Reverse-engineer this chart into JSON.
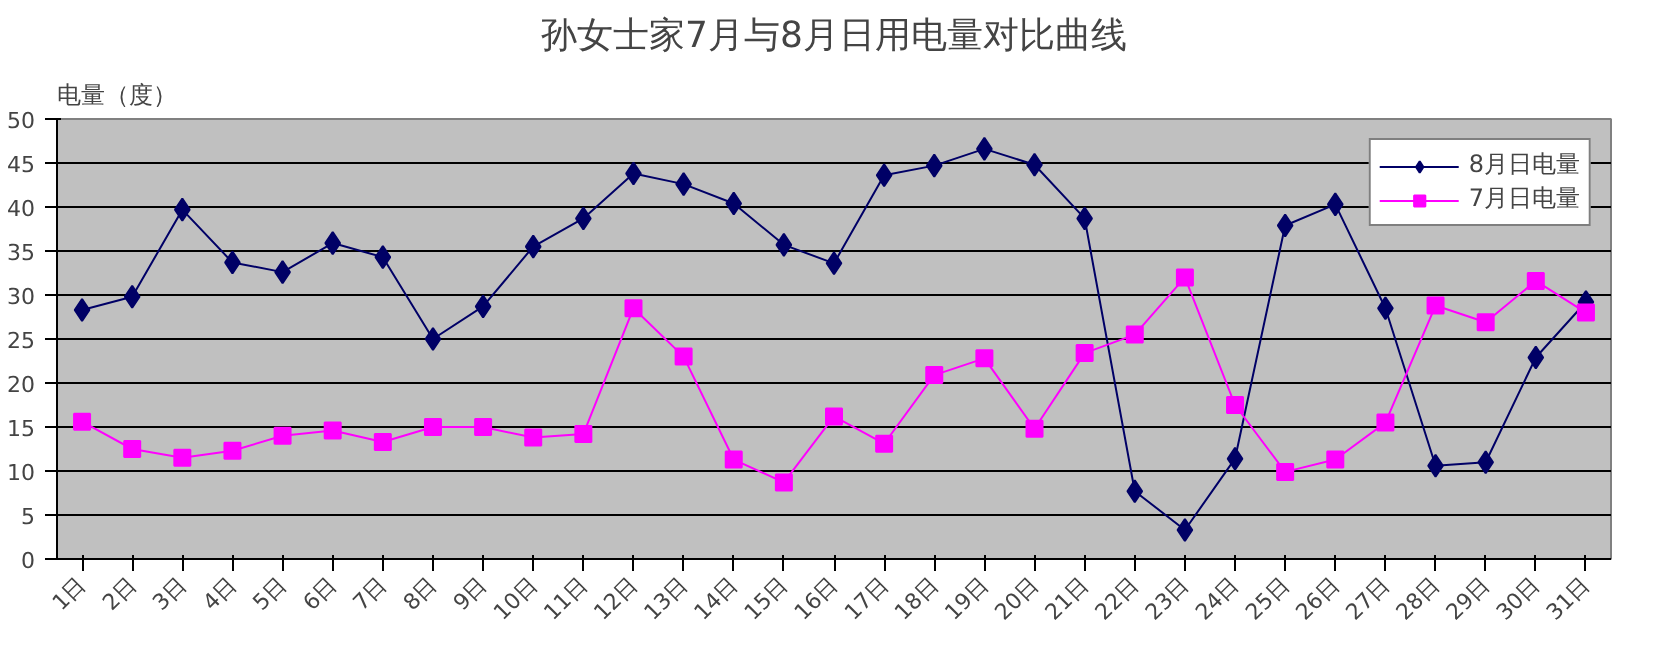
{
  "chart_data": {
    "type": "line",
    "title": "孙女士家7月与8月日用电量对比曲线",
    "ylabel": "电量（度）",
    "categories": [
      "1日",
      "2日",
      "3日",
      "4日",
      "5日",
      "6日",
      "7日",
      "8日",
      "9日",
      "10日",
      "11日",
      "12日",
      "13日",
      "14日",
      "15日",
      "16日",
      "17日",
      "18日",
      "19日",
      "20日",
      "21日",
      "22日",
      "23日",
      "24日",
      "25日",
      "26日",
      "27日",
      "28日",
      "29日",
      "30日",
      "31日"
    ],
    "series": [
      {
        "name": "8月日电量",
        "color": "#000066",
        "marker": "diamond",
        "values": [
          28.3,
          29.8,
          39.7,
          33.7,
          32.6,
          35.9,
          34.3,
          25,
          28.7,
          35.5,
          38.7,
          43.8,
          42.6,
          40.4,
          35.7,
          33.6,
          43.6,
          44.7,
          46.6,
          44.8,
          38.7,
          7.7,
          3.3,
          11.4,
          37.9,
          40.3,
          28.5,
          10.6,
          11,
          22.9,
          29.2
        ]
      },
      {
        "name": "7月日电量",
        "color": "#ff00ff",
        "marker": "square",
        "values": [
          15.6,
          12.5,
          11.5,
          12.3,
          14,
          14.6,
          13.3,
          15,
          15,
          13.8,
          14.2,
          28.5,
          23,
          11.3,
          8.7,
          16.2,
          13.1,
          20.9,
          22.8,
          14.8,
          23.4,
          25.5,
          32,
          17.5,
          9.9,
          11.3,
          15.5,
          28.8,
          26.9,
          31.6,
          28
        ]
      }
    ],
    "ylim": [
      0,
      50
    ],
    "yticks": [
      0,
      5,
      10,
      15,
      20,
      25,
      30,
      35,
      40,
      45,
      50
    ],
    "grid": "y",
    "legend": "top right",
    "line_style": "solid"
  }
}
